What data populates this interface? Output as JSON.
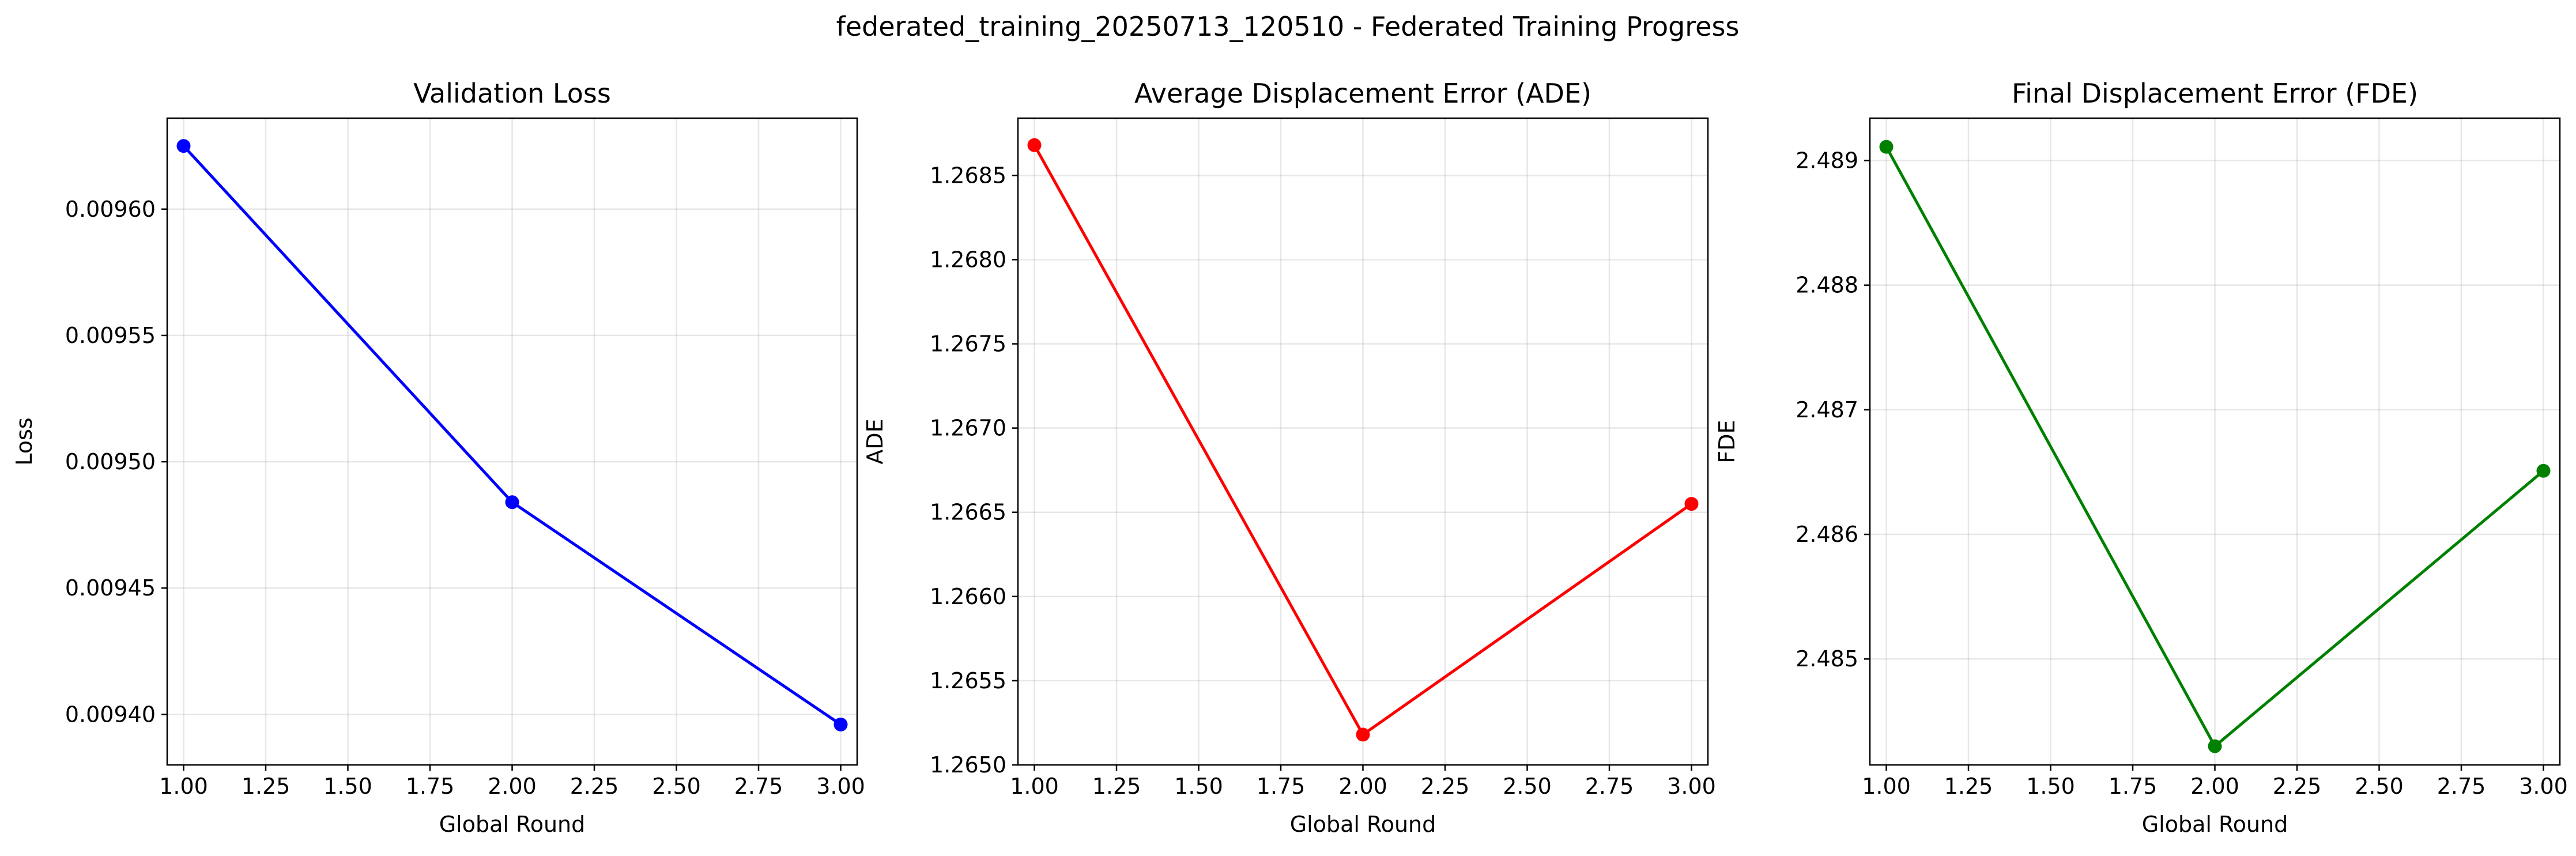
{
  "suptitle": "federated_training_20250713_120510 - Federated Training Progress",
  "chart_data": [
    {
      "type": "line",
      "title": "Validation Loss",
      "xlabel": "Global Round",
      "ylabel": "Loss",
      "xlim": [
        0.95,
        3.05
      ],
      "ylim": [
        0.00938,
        0.009636
      ],
      "xticks": [
        1.0,
        1.25,
        1.5,
        1.75,
        2.0,
        2.25,
        2.5,
        2.75,
        3.0
      ],
      "xtick_labels": [
        "1.00",
        "1.25",
        "1.50",
        "1.75",
        "2.00",
        "2.25",
        "2.50",
        "2.75",
        "3.00"
      ],
      "yticks": [
        0.0094,
        0.00945,
        0.0095,
        0.00955,
        0.0096
      ],
      "ytick_labels": [
        "0.00940",
        "0.00945",
        "0.00950",
        "0.00955",
        "0.00960"
      ],
      "grid": true,
      "color": "#0000ff",
      "series": [
        {
          "x": [
            1,
            2,
            3
          ],
          "y": [
            0.009625,
            0.009484,
            0.009396
          ]
        }
      ]
    },
    {
      "type": "line",
      "title": "Average Displacement Error (ADE)",
      "xlabel": "Global Round",
      "ylabel": "ADE",
      "xlim": [
        0.95,
        3.05
      ],
      "ylim": [
        1.265,
        1.26884
      ],
      "xticks": [
        1.0,
        1.25,
        1.5,
        1.75,
        2.0,
        2.25,
        2.5,
        2.75,
        3.0
      ],
      "xtick_labels": [
        "1.00",
        "1.25",
        "1.50",
        "1.75",
        "2.00",
        "2.25",
        "2.50",
        "2.75",
        "3.00"
      ],
      "yticks": [
        1.265,
        1.2655,
        1.266,
        1.2665,
        1.267,
        1.2675,
        1.268,
        1.2685
      ],
      "ytick_labels": [
        "1.2650",
        "1.2655",
        "1.2660",
        "1.2665",
        "1.2670",
        "1.2675",
        "1.2680",
        "1.2685"
      ],
      "grid": true,
      "color": "#ff0000",
      "series": [
        {
          "x": [
            1,
            2,
            3
          ],
          "y": [
            1.26868,
            1.26518,
            1.26655
          ]
        }
      ]
    },
    {
      "type": "line",
      "title": "Final Displacement Error (FDE)",
      "xlabel": "Global Round",
      "ylabel": "FDE",
      "xlim": [
        0.95,
        3.05
      ],
      "ylim": [
        2.48415,
        2.48934
      ],
      "xticks": [
        1.0,
        1.25,
        1.5,
        1.75,
        2.0,
        2.25,
        2.5,
        2.75,
        3.0
      ],
      "xtick_labels": [
        "1.00",
        "1.25",
        "1.50",
        "1.75",
        "2.00",
        "2.25",
        "2.50",
        "2.75",
        "3.00"
      ],
      "yticks": [
        2.485,
        2.486,
        2.487,
        2.488,
        2.489
      ],
      "ytick_labels": [
        "2.485",
        "2.486",
        "2.487",
        "2.488",
        "2.489"
      ],
      "grid": true,
      "color": "#008000",
      "series": [
        {
          "x": [
            1,
            2,
            3
          ],
          "y": [
            2.48911,
            2.4843,
            2.48651
          ]
        }
      ]
    }
  ]
}
